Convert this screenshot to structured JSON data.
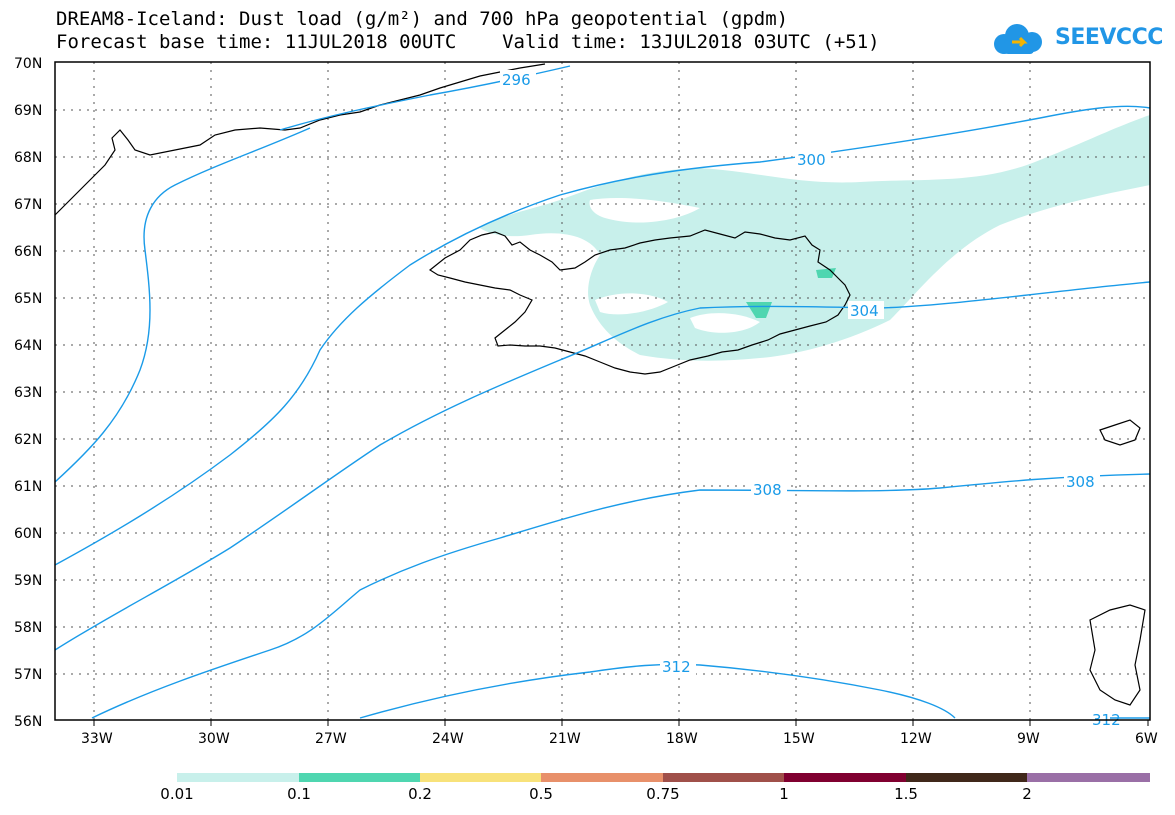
{
  "header": {
    "title_line1": "DREAM8-Iceland: Dust load (g/m²) and 700 hPa geopotential (gpdm)",
    "title_line2": "Forecast base time: 11JUL2018 00UTC    Valid time: 13JUL2018 03UTC (+51)"
  },
  "logo": {
    "text": "SEEVCCC",
    "icon": "cloud-icon"
  },
  "map": {
    "lat_labels": [
      "70N",
      "69N",
      "68N",
      "67N",
      "66N",
      "65N",
      "64N",
      "63N",
      "62N",
      "61N",
      "60N",
      "59N",
      "58N",
      "57N",
      "56N"
    ],
    "lon_labels": [
      "33W",
      "30W",
      "27W",
      "24W",
      "21W",
      "18W",
      "15W",
      "12W",
      "9W",
      "6W"
    ],
    "contour_labels": [
      "296",
      "300",
      "304",
      "308",
      "308",
      "312",
      "312"
    ],
    "colors": {
      "contour": "#1a9be8",
      "dust_low": "#c8f0eb",
      "dust_mid": "#4fd6b0"
    }
  },
  "colorbar": {
    "tick_labels": [
      "0.01",
      "0.1",
      "0.2",
      "0.5",
      "0.75",
      "1",
      "1.5",
      "2"
    ],
    "colors": [
      "#c8f0eb",
      "#4fd6b0",
      "#f8e27a",
      "#e8906a",
      "#a0504a",
      "#800030",
      "#40281a",
      "#9a6fa6"
    ]
  }
}
